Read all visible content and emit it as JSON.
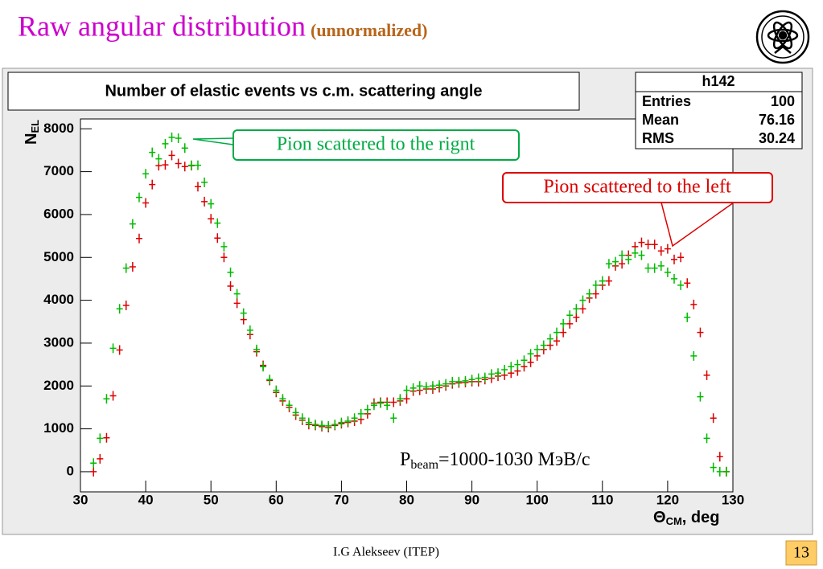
{
  "slide": {
    "title": "Raw angular distribution",
    "subtitle": "(unnormalized)",
    "footer": "I.G Alekseev (ITEP)",
    "page_number": "13"
  },
  "chart_data": {
    "type": "scatter",
    "title": "Number of elastic events vs c.m. scattering angle",
    "stats": {
      "title": "h142",
      "rows": [
        [
          "Entries",
          100
        ],
        [
          "Mean",
          76.16
        ],
        [
          "RMS",
          30.24
        ]
      ]
    },
    "y_label": {
      "main": "N",
      "sub": "EL"
    },
    "x_label": {
      "main": "Θ",
      "sub": "CM",
      "rest": ", deg"
    },
    "annotations": {
      "right": "Pion scattered to the rignt",
      "left": "Pion scattered to the left",
      "beam": {
        "main": "P",
        "sub": "beam",
        "rest": "=1000-1030 МэВ/c"
      }
    },
    "xlim": [
      30,
      130
    ],
    "ylim": [
      -470,
      8230
    ],
    "xticks": [
      30,
      40,
      50,
      60,
      70,
      80,
      90,
      100,
      110,
      120,
      130
    ],
    "yticks": [
      0,
      1000,
      2000,
      3000,
      4000,
      5000,
      6000,
      7000,
      8000
    ],
    "x": [
      32,
      33,
      34,
      35,
      36,
      37,
      38,
      39,
      40,
      41,
      42,
      43,
      44,
      45,
      46,
      47,
      48,
      49,
      50,
      51,
      52,
      53,
      54,
      55,
      56,
      57,
      58,
      59,
      60,
      61,
      62,
      63,
      64,
      65,
      66,
      67,
      68,
      69,
      70,
      71,
      72,
      73,
      74,
      75,
      76,
      77,
      78,
      79,
      80,
      81,
      82,
      83,
      84,
      85,
      86,
      87,
      88,
      89,
      90,
      91,
      92,
      93,
      94,
      95,
      96,
      97,
      98,
      99,
      100,
      101,
      102,
      103,
      104,
      105,
      106,
      107,
      108,
      109,
      110,
      111,
      112,
      113,
      114,
      115,
      116,
      117,
      118,
      119,
      120,
      121,
      122,
      123,
      124,
      125,
      126,
      127,
      128,
      129
    ],
    "series": [
      {
        "color": "#dd0000",
        "values": [
          0,
          300,
          790,
          1770,
          2840,
          3880,
          4780,
          5440,
          6270,
          6700,
          7140,
          7160,
          7380,
          7190,
          7120,
          7140,
          6650,
          6300,
          5900,
          5450,
          5000,
          4330,
          3930,
          3550,
          3200,
          2800,
          2480,
          2130,
          1850,
          1650,
          1500,
          1320,
          1200,
          1100,
          1080,
          1050,
          1030,
          1080,
          1120,
          1150,
          1180,
          1220,
          1350,
          1600,
          1620,
          1620,
          1620,
          1650,
          1700,
          1880,
          1900,
          1930,
          1930,
          1960,
          2000,
          2050,
          2070,
          2080,
          2100,
          2100,
          2150,
          2180,
          2230,
          2250,
          2300,
          2350,
          2450,
          2550,
          2700,
          2850,
          2950,
          3050,
          3250,
          3450,
          3600,
          3800,
          4050,
          4150,
          4350,
          4450,
          4800,
          4850,
          5050,
          5250,
          5350,
          5300,
          5300,
          5150,
          5200,
          4950,
          5000,
          4400,
          3900,
          3250,
          2250,
          1250,
          350,
          0
        ]
      },
      {
        "color": "#00bb00",
        "values": [
          200,
          780,
          1700,
          2880,
          3800,
          4750,
          5780,
          6400,
          6950,
          7450,
          7300,
          7650,
          7800,
          7780,
          7550,
          7150,
          7150,
          6750,
          6250,
          5800,
          5250,
          4650,
          4150,
          3700,
          3300,
          2850,
          2450,
          2150,
          1900,
          1700,
          1550,
          1380,
          1250,
          1150,
          1100,
          1080,
          1070,
          1100,
          1150,
          1180,
          1250,
          1350,
          1450,
          1550,
          1600,
          1550,
          1250,
          1700,
          1900,
          1950,
          2000,
          1980,
          2000,
          2020,
          2050,
          2100,
          2100,
          2120,
          2150,
          2180,
          2200,
          2280,
          2300,
          2380,
          2450,
          2500,
          2600,
          2750,
          2850,
          2950,
          3100,
          3250,
          3450,
          3650,
          3800,
          4000,
          4150,
          4350,
          4450,
          4850,
          4900,
          5050,
          4950,
          5100,
          5050,
          4750,
          4750,
          4800,
          4650,
          4500,
          4350,
          3600,
          2700,
          1750,
          780,
          100,
          0,
          0
        ]
      }
    ]
  }
}
